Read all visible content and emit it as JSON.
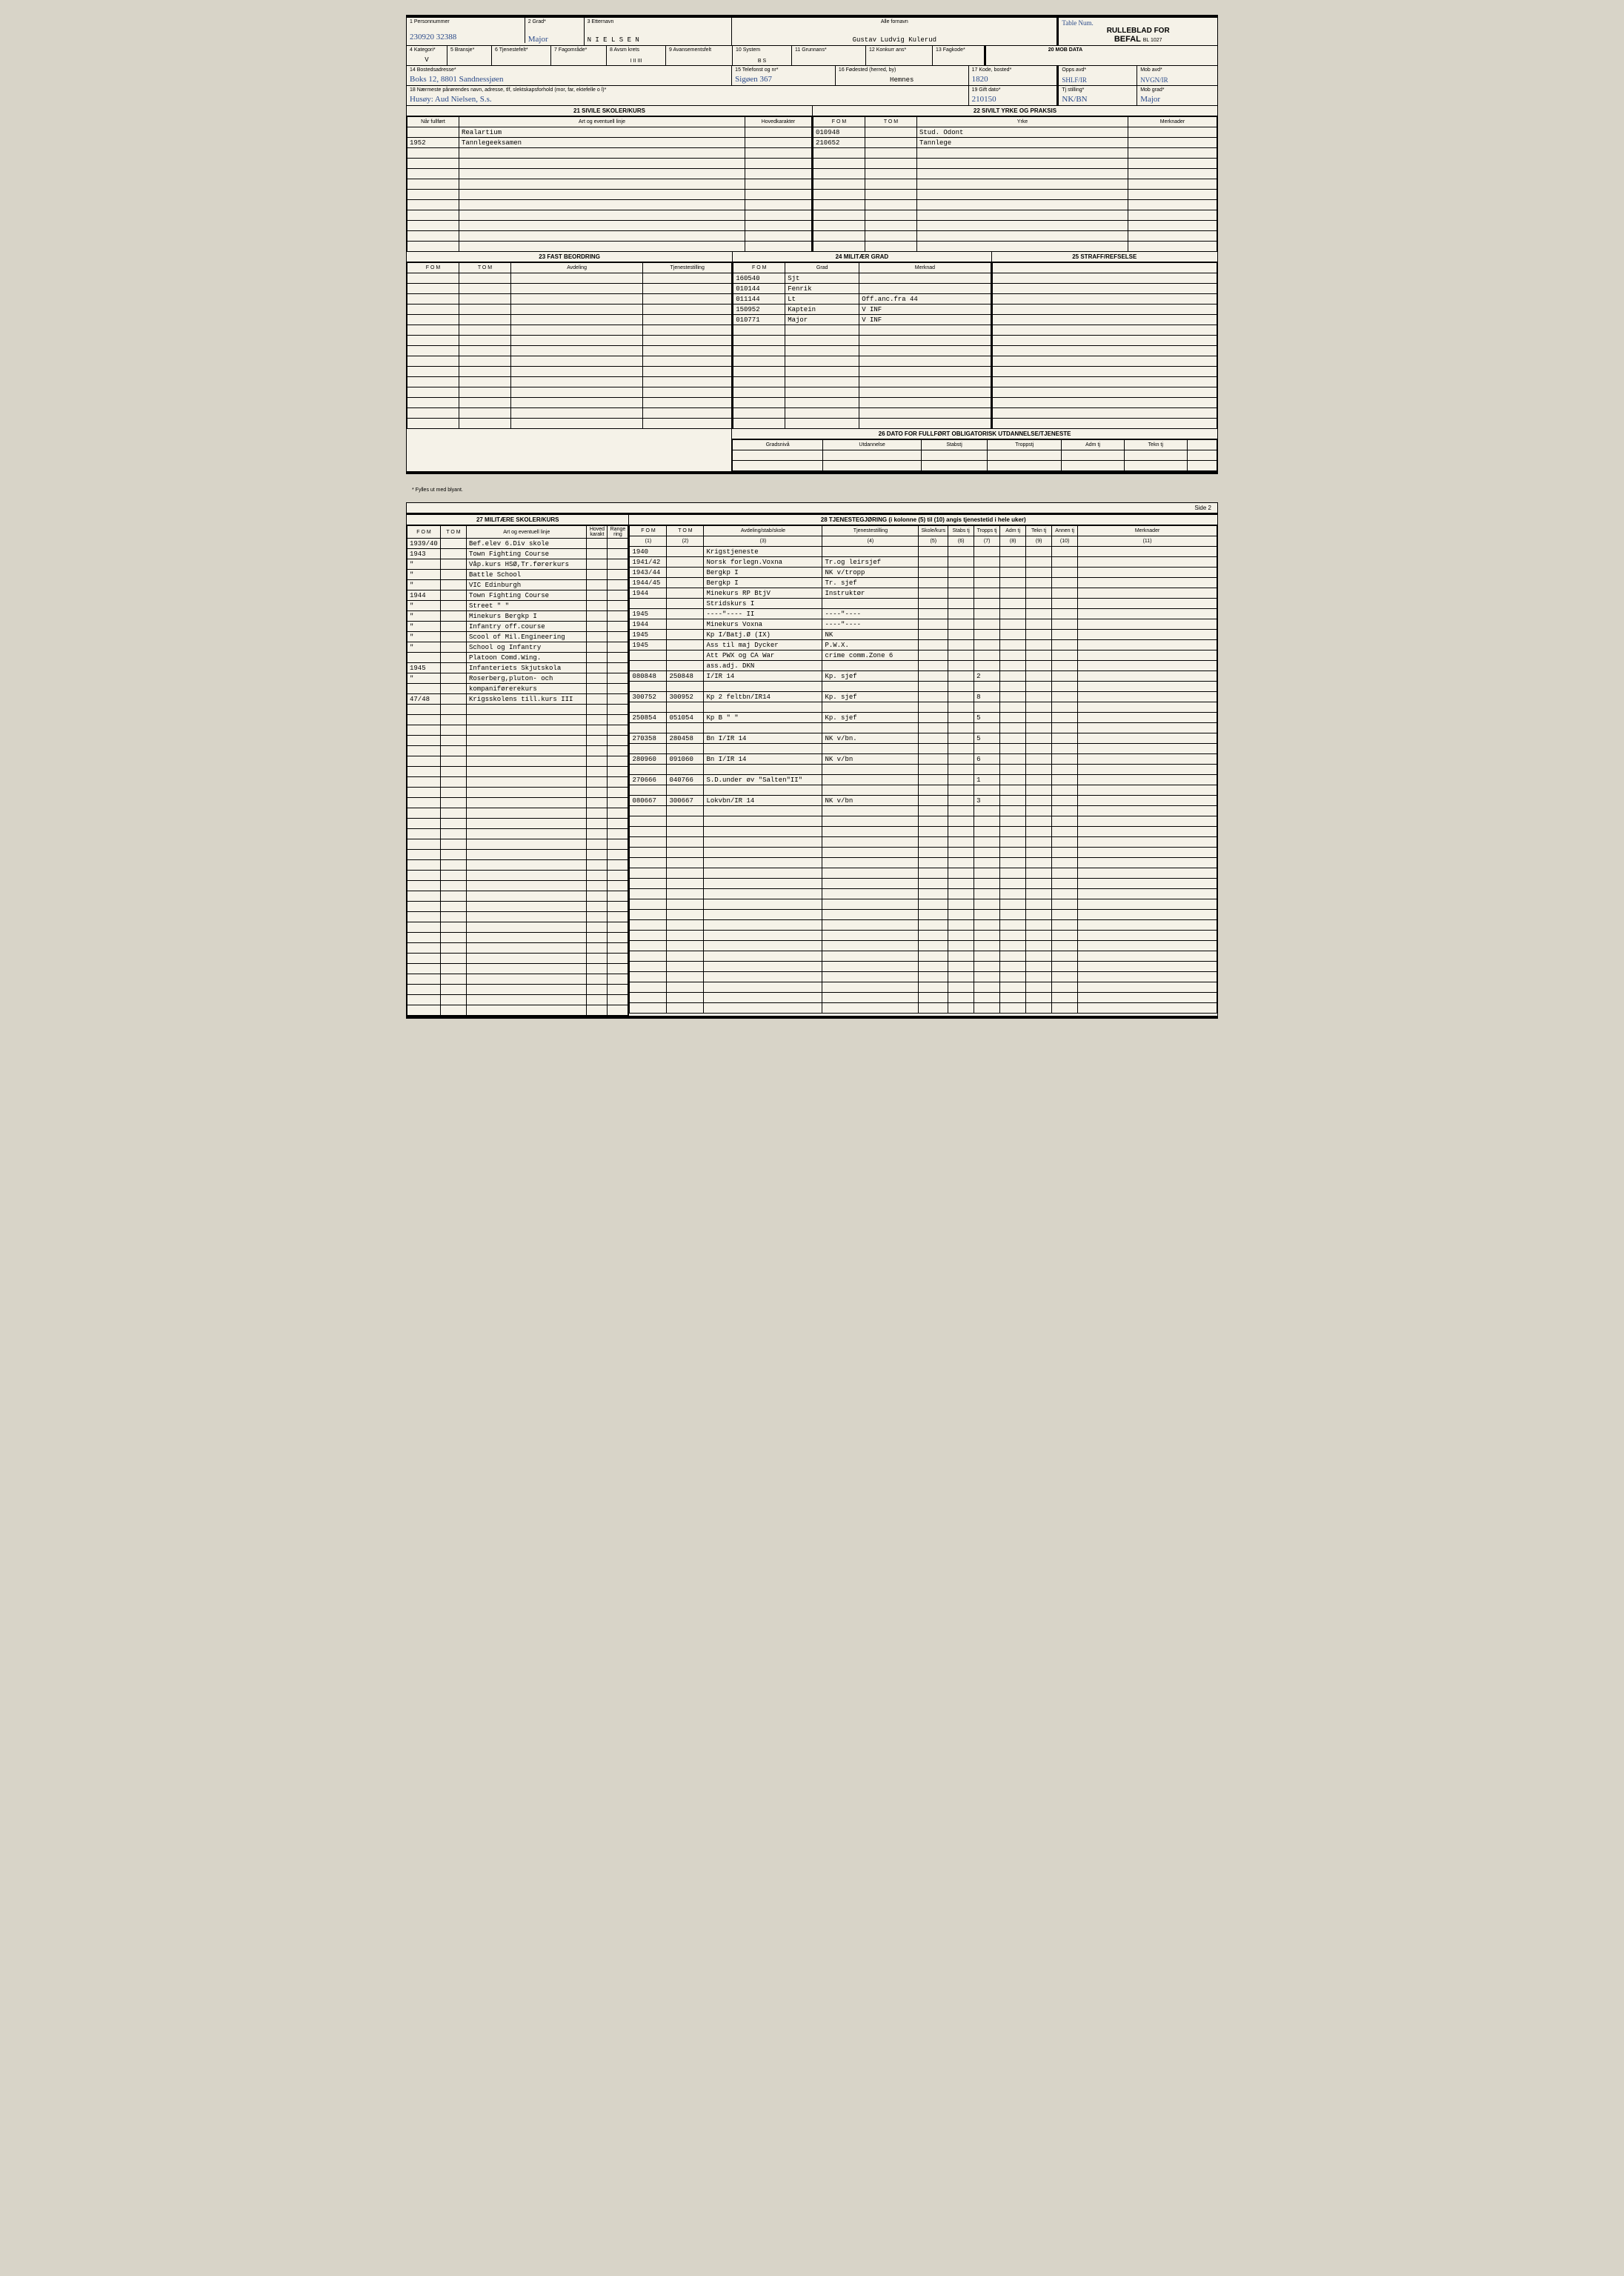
{
  "form": {
    "title1": "RULLEBLAD FOR",
    "title2": "BEFAL",
    "formNumber": "BL 1027",
    "topNote": "Table Num."
  },
  "fields": {
    "f1": {
      "label": "1 Personnummer",
      "value": "230920 32388"
    },
    "f2": {
      "label": "2 Grad*",
      "value": "Major"
    },
    "f3": {
      "label": "3 Etternavn",
      "value": "N I E L S E N"
    },
    "f3b": {
      "label": "Alle fornavn",
      "value": "Gustav Ludvig Kulerud"
    },
    "f4": {
      "label": "4 Kategori*",
      "value": "V"
    },
    "f5": {
      "label": "5 Bransje*",
      "value": ""
    },
    "f6": {
      "label": "6 Tjenestefelt*",
      "value": ""
    },
    "f7": {
      "label": "7 Fagområde*",
      "value": ""
    },
    "f8": {
      "label": "8 Avsm krets",
      "value": "I   II   III"
    },
    "f9": {
      "label": "9 Avansementsfelt",
      "value": ""
    },
    "f10": {
      "label": "10 System",
      "value": "B      S"
    },
    "f11": {
      "label": "11 Grunnans*",
      "value": ""
    },
    "f12": {
      "label": "12 Konkurr ans*",
      "value": ""
    },
    "f13": {
      "label": "13 Fagkode*",
      "value": ""
    },
    "f20": {
      "label": "20 MOB DATA",
      "value": ""
    },
    "f14": {
      "label": "14 Bostedsadresse*",
      "value": "Boks 12, 8801 Sandnessjøen"
    },
    "f15": {
      "label": "15 Telefonst og nr*",
      "value": "Sigøen 367"
    },
    "f16": {
      "label": "16 Fødested (herred, by)",
      "value": "Hemnes"
    },
    "f17": {
      "label": "17 Kode, bosted*",
      "value": "1820"
    },
    "opps": {
      "label": "Opps avd*",
      "value": "SHLF/IR"
    },
    "mobavd": {
      "label": "Mob avd*",
      "value": "NVGN/IR"
    },
    "f18": {
      "label": "18 Nærmeste pårørendes navn, adresse, tlf, slektskapsforhold (mor, far, ektefelle o l)*",
      "value": "Husøy: Aud Nielsen, S.s."
    },
    "f19": {
      "label": "19 Gift dato*",
      "value": "210150"
    },
    "tjstilling": {
      "label": "Tj stilling*",
      "value": "NK/BN"
    },
    "mobgrad": {
      "label": "Mob grad*",
      "value": "Major"
    }
  },
  "section21": {
    "title": "21 SIVILE SKOLER/KURS",
    "cols": [
      "Når fullført",
      "Art og eventuell linje",
      "Hovedkarakter"
    ],
    "rows": [
      [
        "",
        "Realartium",
        ""
      ],
      [
        "1952",
        "Tannlegeeksamen",
        ""
      ]
    ]
  },
  "section22": {
    "title": "22 SIVILT YRKE OG PRAKSIS",
    "cols": [
      "F O M",
      "T O M",
      "Yrke",
      "Merknader"
    ],
    "rows": [
      [
        "010948",
        "",
        "Stud. Odont",
        ""
      ],
      [
        "210652",
        "",
        "Tannlege",
        ""
      ]
    ]
  },
  "section23": {
    "title": "23 FAST BEORDRING",
    "cols": [
      "F O M",
      "T O M",
      "Avdeling",
      "Tjenestestilling"
    ]
  },
  "section24": {
    "title": "24 MILITÆR GRAD",
    "cols": [
      "F O M",
      "Grad",
      "Merknad"
    ],
    "rows": [
      [
        "160540",
        "Sjt",
        ""
      ],
      [
        "010144",
        "Fenrik",
        ""
      ],
      [
        "011144",
        "Lt",
        "Off.anc.fra 44"
      ],
      [
        "150952",
        "Kaptein",
        "V INF"
      ],
      [
        "010771",
        "Major",
        "V INF"
      ]
    ]
  },
  "section25": {
    "title": "25 STRAFF/REFSELSE"
  },
  "section26": {
    "title": "26 DATO FOR FULLFØRT OBLIGATORISK UTDANNELSE/TJENESTE",
    "cols": [
      "Gradsnivå",
      "Utdannelse",
      "Stabstj",
      "Troppstj",
      "Adm tj",
      "Tekn tj"
    ]
  },
  "footnote1": "* Fylles ut med blyant.",
  "sideLabel": "Side 2",
  "section27": {
    "title": "27 MILITÆRE SKOLER/KURS",
    "cols": [
      "F O M",
      "T O M",
      "Art og eventuell linje",
      "Hoved karakt",
      "Range ring"
    ],
    "rows": [
      [
        "1939/40",
        "",
        "Bef.elev 6.Div skole",
        "",
        ""
      ],
      [
        "1943",
        "",
        "Town Fighting Course",
        "",
        ""
      ],
      [
        "\"",
        "",
        "Våp.kurs HSØ,Tr.førerkurs",
        "",
        ""
      ],
      [
        "\"",
        "",
        "Battle School",
        "",
        ""
      ],
      [
        "\"",
        "",
        "VIC Edinburgh",
        "",
        ""
      ],
      [
        "1944",
        "",
        "Town Fighting Course",
        "",
        ""
      ],
      [
        "\"",
        "",
        "Street    \"        \"",
        "",
        ""
      ],
      [
        "\"",
        "",
        "Minekurs Bergkp I",
        "",
        ""
      ],
      [
        "\"",
        "",
        "Infantry off.course",
        "",
        ""
      ],
      [
        "\"",
        "",
        "Scool of Mil.Engineering",
        "",
        ""
      ],
      [
        "\"",
        "",
        "School og Infantry",
        "",
        ""
      ],
      [
        "",
        "",
        "Platoon Comd.Wing.",
        "",
        ""
      ],
      [
        "1945",
        "",
        "Infanteriets Skjutskola",
        "",
        ""
      ],
      [
        "\"",
        "",
        "Roserberg,pluton- och",
        "",
        ""
      ],
      [
        "",
        "",
        "kompaniførerekurs",
        "",
        ""
      ],
      [
        "47/48",
        "",
        "Krigsskolens till.kurs III",
        "",
        ""
      ]
    ]
  },
  "section28": {
    "title": "28 TJENESTEGJØRING  (i kolonne (5) til (10) angis tjenestetid i hele uker)",
    "cols": [
      "F O M",
      "T O M",
      "Avdeling/stab/skole",
      "Tjenestestilling",
      "Skole/kurs",
      "Stabs tj",
      "Tropps tj",
      "Adm tj",
      "Tekn tj",
      "Annen tj",
      "Merknader"
    ],
    "subcols": [
      "(1)",
      "(2)",
      "(3)",
      "(4)",
      "(5)",
      "(6)",
      "(7)",
      "(8)",
      "(9)",
      "(10)",
      "(11)"
    ],
    "rows": [
      [
        "1940",
        "",
        "Krigstjeneste",
        "",
        "",
        "",
        "",
        "",
        "",
        "",
        ""
      ],
      [
        "1941/42",
        "",
        "Norsk forlegn.Voxna",
        "Tr.og leirsjef",
        "",
        "",
        "",
        "",
        "",
        "",
        ""
      ],
      [
        "1943/44",
        "",
        "Bergkp I",
        "NK v/tropp",
        "",
        "",
        "",
        "",
        "",
        "",
        ""
      ],
      [
        "1944/45",
        "",
        "Bergkp I",
        "Tr. sjef",
        "",
        "",
        "",
        "",
        "",
        "",
        ""
      ],
      [
        "1944",
        "",
        "Minekurs RP BtjV",
        "Instruktør",
        "",
        "",
        "",
        "",
        "",
        "",
        ""
      ],
      [
        "",
        "",
        "Stridskurs I",
        "",
        "",
        "",
        "",
        "",
        "",
        "",
        ""
      ],
      [
        "1945",
        "",
        "----\"----  II",
        "----\"----",
        "",
        "",
        "",
        "",
        "",
        "",
        ""
      ],
      [
        "1944",
        "",
        "Minekurs Voxna",
        "----\"----",
        "",
        "",
        "",
        "",
        "",
        "",
        ""
      ],
      [
        "1945",
        "",
        "Kp I/Batj.Ø (IX)",
        "NK",
        "",
        "",
        "",
        "",
        "",
        "",
        ""
      ],
      [
        "1945",
        "",
        "Ass til maj Dycker",
        "P.W.X.",
        "",
        "",
        "",
        "",
        "",
        "",
        ""
      ],
      [
        "",
        "",
        "Att PWX og CA War",
        "crime comm.Zone 6",
        "",
        "",
        "",
        "",
        "",
        "",
        ""
      ],
      [
        "",
        "",
        "ass.adj. DKN",
        "",
        "",
        "",
        "",
        "",
        "",
        "",
        ""
      ],
      [
        "080848",
        "250848",
        "I/IR 14",
        "Kp. sjef",
        "",
        "",
        "2",
        "",
        "",
        "",
        ""
      ],
      [
        "",
        "",
        "",
        "",
        "",
        "",
        "",
        "",
        "",
        "",
        ""
      ],
      [
        "300752",
        "300952",
        "Kp 2 feltbn/IR14",
        "Kp. sjef",
        "",
        "",
        "8",
        "",
        "",
        "",
        ""
      ],
      [
        "",
        "",
        "",
        "",
        "",
        "",
        "",
        "",
        "",
        "",
        ""
      ],
      [
        "250854",
        "051054",
        "Kp B   \"     \"",
        "Kp. sjef",
        "",
        "",
        "5",
        "",
        "",
        "",
        ""
      ],
      [
        "",
        "",
        "",
        "",
        "",
        "",
        "",
        "",
        "",
        "",
        ""
      ],
      [
        "270358",
        "280458",
        "Bn I/IR 14",
        "NK v/bn.",
        "",
        "",
        "5",
        "",
        "",
        "",
        ""
      ],
      [
        "",
        "",
        "",
        "",
        "",
        "",
        "",
        "",
        "",
        "",
        ""
      ],
      [
        "280960",
        "091060",
        "Bn I/IR 14",
        "NK v/bn",
        "",
        "",
        "6",
        "",
        "",
        "",
        ""
      ],
      [
        "",
        "",
        "",
        "",
        "",
        "",
        "",
        "",
        "",
        "",
        ""
      ],
      [
        "270666",
        "040766",
        "S.D.under øv \"Salten\"II\"",
        "",
        "",
        "",
        "1",
        "",
        "",
        "",
        ""
      ],
      [
        "",
        "",
        "",
        "",
        "",
        "",
        "",
        "",
        "",
        "",
        ""
      ],
      [
        "080667",
        "300667",
        "Lokvbn/IR 14",
        "NK v/bn",
        "",
        "",
        "3",
        "",
        "",
        "",
        ""
      ]
    ]
  },
  "colors": {
    "paper": "#f5f2e8",
    "bg": "#d8d4c8",
    "line": "#000000",
    "ink": "#2a4a8a"
  }
}
